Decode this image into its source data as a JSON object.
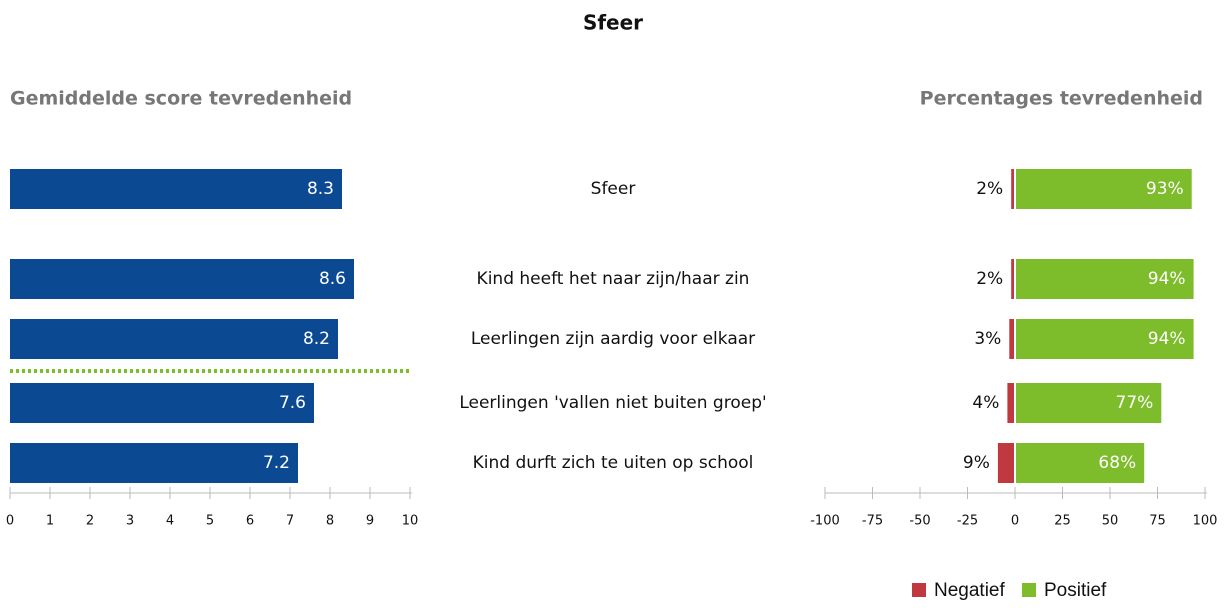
{
  "title": "Sfeer",
  "chart_data": [
    {
      "type": "hbar",
      "title": "Gemiddelde score tevredenheid",
      "categories": [
        "Sfeer",
        "Kind heeft het naar zijn/haar zin",
        "Leerlingen zijn aardig voor elkaar",
        "Leerlingen 'vallen niet buiten groep'",
        "Kind durft zich te uiten op school"
      ],
      "values": [
        8.3,
        8.6,
        8.2,
        7.6,
        7.2
      ],
      "color": "#0b4a92",
      "xlim": [
        0,
        10
      ],
      "xticks": [
        0,
        1,
        2,
        3,
        4,
        5,
        6,
        7,
        8,
        9,
        10
      ]
    },
    {
      "type": "stacked-hbar",
      "title": "Percentages tevredenheid",
      "series": [
        {
          "name": "Negatief",
          "color": "#c0393f",
          "values": [
            -2,
            -2,
            -3,
            -4,
            -9
          ],
          "value_labels": [
            "2%",
            "2%",
            "3%",
            "4%",
            "9%"
          ]
        },
        {
          "name": "Positief",
          "color": "#7dbc2a",
          "values": [
            93,
            94,
            94,
            77,
            68
          ],
          "value_labels": [
            "93%",
            "94%",
            "94%",
            "77%",
            "68%"
          ]
        }
      ],
      "xlim": [
        -100,
        100
      ],
      "xticks": [
        -100,
        -75,
        -50,
        -25,
        0,
        25,
        50,
        75,
        100
      ],
      "legend": "bottom-right"
    }
  ]
}
